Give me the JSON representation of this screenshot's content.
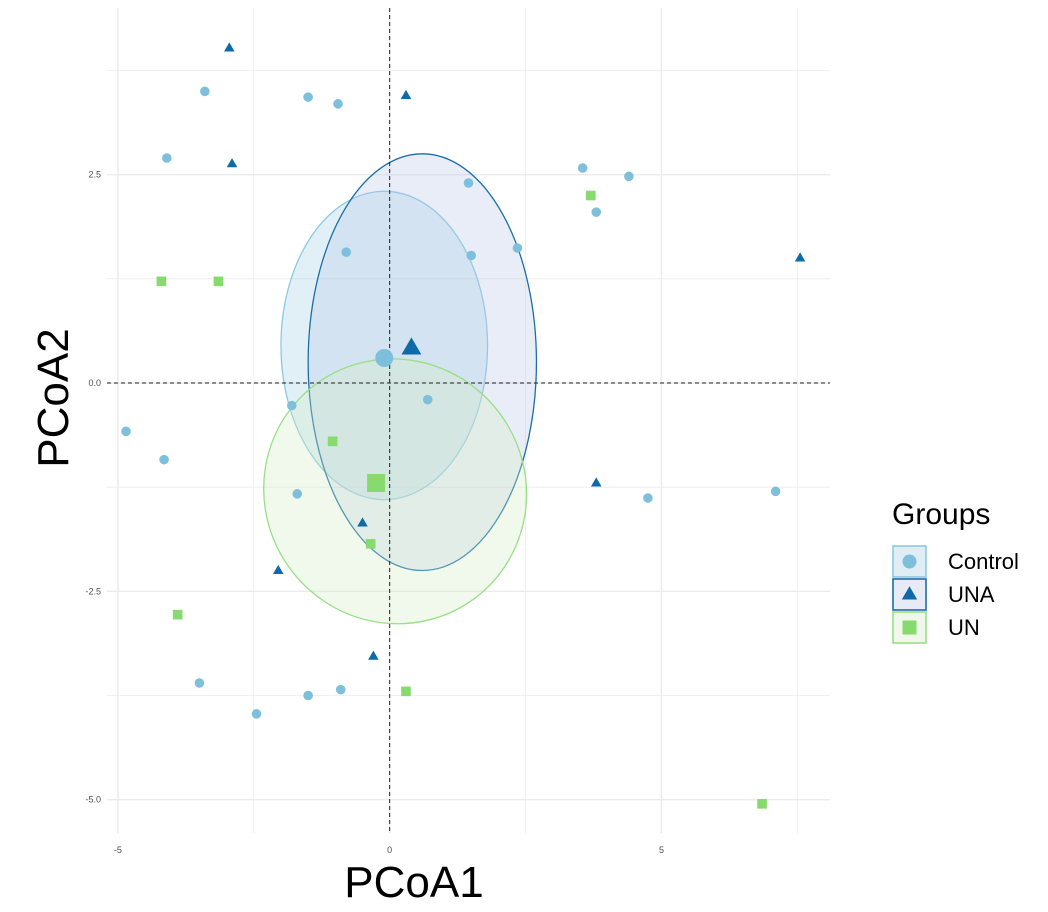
{
  "chart_data": {
    "type": "scatter",
    "xlabel": "PCoA1",
    "ylabel": "PCoA2",
    "xlim": [
      -5.2,
      8.1
    ],
    "ylim": [
      -5.4,
      4.5
    ],
    "x_ticks": [
      -5,
      0,
      5
    ],
    "x_tick_labels": [
      "-5",
      "0",
      "5"
    ],
    "y_ticks": [
      -5,
      -2.5,
      0,
      2.5
    ],
    "y_tick_labels": [
      "-5.0",
      "-2.5",
      "0.0",
      "2.5"
    ],
    "grid": true,
    "reference_lines": {
      "x": 0,
      "y": 0,
      "style": "dashed"
    },
    "legend": {
      "title": "Groups",
      "position": "right",
      "entries": [
        "Control",
        "UNA",
        "UN"
      ]
    },
    "series": [
      {
        "name": "Control",
        "shape": "circle",
        "color": "#7ec0dc",
        "ellipse_color": "#8dc9e0",
        "ellipse_fill": "#a3cfe2",
        "centroid": [
          -0.1,
          0.3
        ],
        "ellipse": {
          "cx": -0.1,
          "cy": 0.45,
          "rx": 1.9,
          "ry": 1.85,
          "angle": 0
        },
        "points": [
          [
            -3.4,
            3.5
          ],
          [
            -1.5,
            3.43
          ],
          [
            -0.95,
            3.35
          ],
          [
            -4.1,
            2.7
          ],
          [
            3.55,
            2.58
          ],
          [
            4.4,
            2.48
          ],
          [
            1.45,
            2.4
          ],
          [
            3.8,
            2.05
          ],
          [
            2.35,
            1.62
          ],
          [
            1.5,
            1.53
          ],
          [
            -0.8,
            1.57
          ],
          [
            0.7,
            -0.2
          ],
          [
            -1.8,
            -0.27
          ],
          [
            -4.85,
            -0.58
          ],
          [
            -4.15,
            -0.92
          ],
          [
            -1.7,
            -1.33
          ],
          [
            4.75,
            -1.38
          ],
          [
            7.1,
            -1.3
          ],
          [
            -3.5,
            -3.6
          ],
          [
            -1.5,
            -3.75
          ],
          [
            -0.9,
            -3.68
          ],
          [
            -2.45,
            -3.97
          ]
        ]
      },
      {
        "name": "UNA",
        "shape": "triangle",
        "color": "#0e6aa8",
        "ellipse_color": "#1a6fa8",
        "ellipse_fill": "#b9c7e6",
        "centroid": [
          0.4,
          0.42
        ],
        "ellipse": {
          "cx": 0.6,
          "cy": 0.25,
          "rx": 2.1,
          "ry": 2.5,
          "angle": 0
        },
        "points": [
          [
            -2.95,
            4.02
          ],
          [
            0.3,
            3.45
          ],
          [
            -2.9,
            2.63
          ],
          [
            7.55,
            1.5
          ],
          [
            3.8,
            -1.2
          ],
          [
            -0.5,
            -1.68
          ],
          [
            -2.05,
            -2.25
          ],
          [
            -0.3,
            -3.28
          ]
        ]
      },
      {
        "name": "UN",
        "shape": "square",
        "color": "#86da6e",
        "ellipse_color": "#98df86",
        "ellipse_fill": "#d3ecc5",
        "centroid": [
          -0.25,
          -1.2
        ],
        "ellipse": {
          "cx": 0.1,
          "cy": -1.3,
          "rx": 2.4,
          "ry": 1.6,
          "angle": -35
        },
        "points": [
          [
            3.7,
            2.25
          ],
          [
            -4.2,
            1.22
          ],
          [
            -3.15,
            1.22
          ],
          [
            -1.05,
            -0.7
          ],
          [
            -0.35,
            -1.93
          ],
          [
            -3.9,
            -2.78
          ],
          [
            0.3,
            -3.7
          ],
          [
            6.85,
            -5.05
          ]
        ]
      }
    ]
  }
}
